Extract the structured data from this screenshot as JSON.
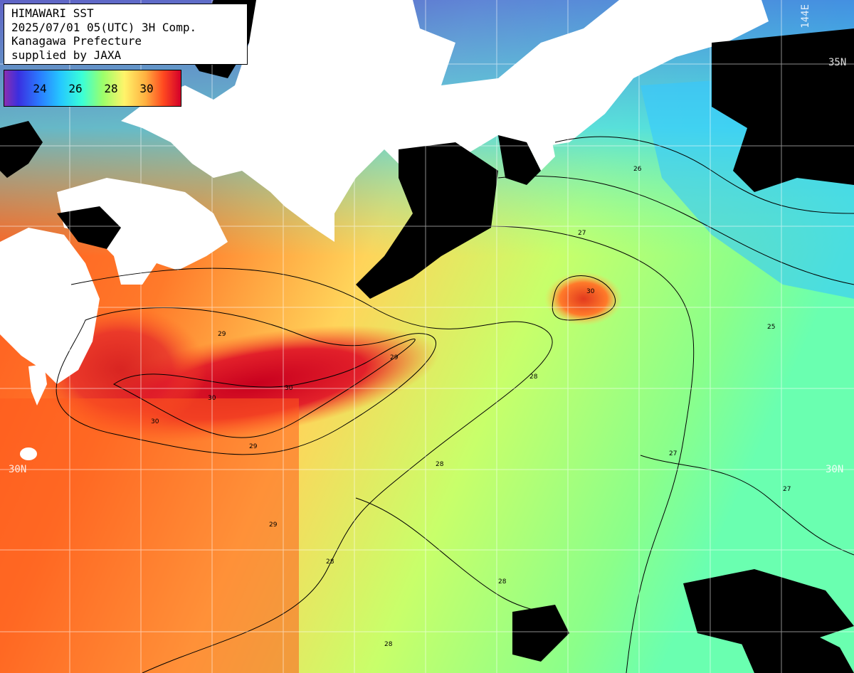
{
  "title": {
    "line1": "HIMAWARI SST",
    "line2": "2025/07/01 05(UTC) 3H Comp.",
    "line3": "Kanagawa Prefecture",
    "line4": "supplied by JAXA"
  },
  "colorbar": {
    "labels": [
      "24",
      "26",
      "28",
      "30"
    ]
  },
  "grid_labels": {
    "lon_top": "144E",
    "lat_35_right": "35N",
    "lat_30_left": "30N",
    "lat_30_right": "30N"
  },
  "contour_labels": [
    "30",
    "30",
    "30",
    "29",
    "29",
    "29",
    "28",
    "28",
    "28",
    "27",
    "27",
    "26",
    "25",
    "29",
    "28",
    "28",
    "27",
    "30"
  ],
  "colors": {
    "land": "#ffffff",
    "cloud": "#000000",
    "sst_warm": "#ff5a1e",
    "sst_hot": "#d9102a",
    "sst_mid": "#c8ff64",
    "sst_cool": "#33d6ff",
    "grid": "#ffffff",
    "contour": "#000000"
  }
}
